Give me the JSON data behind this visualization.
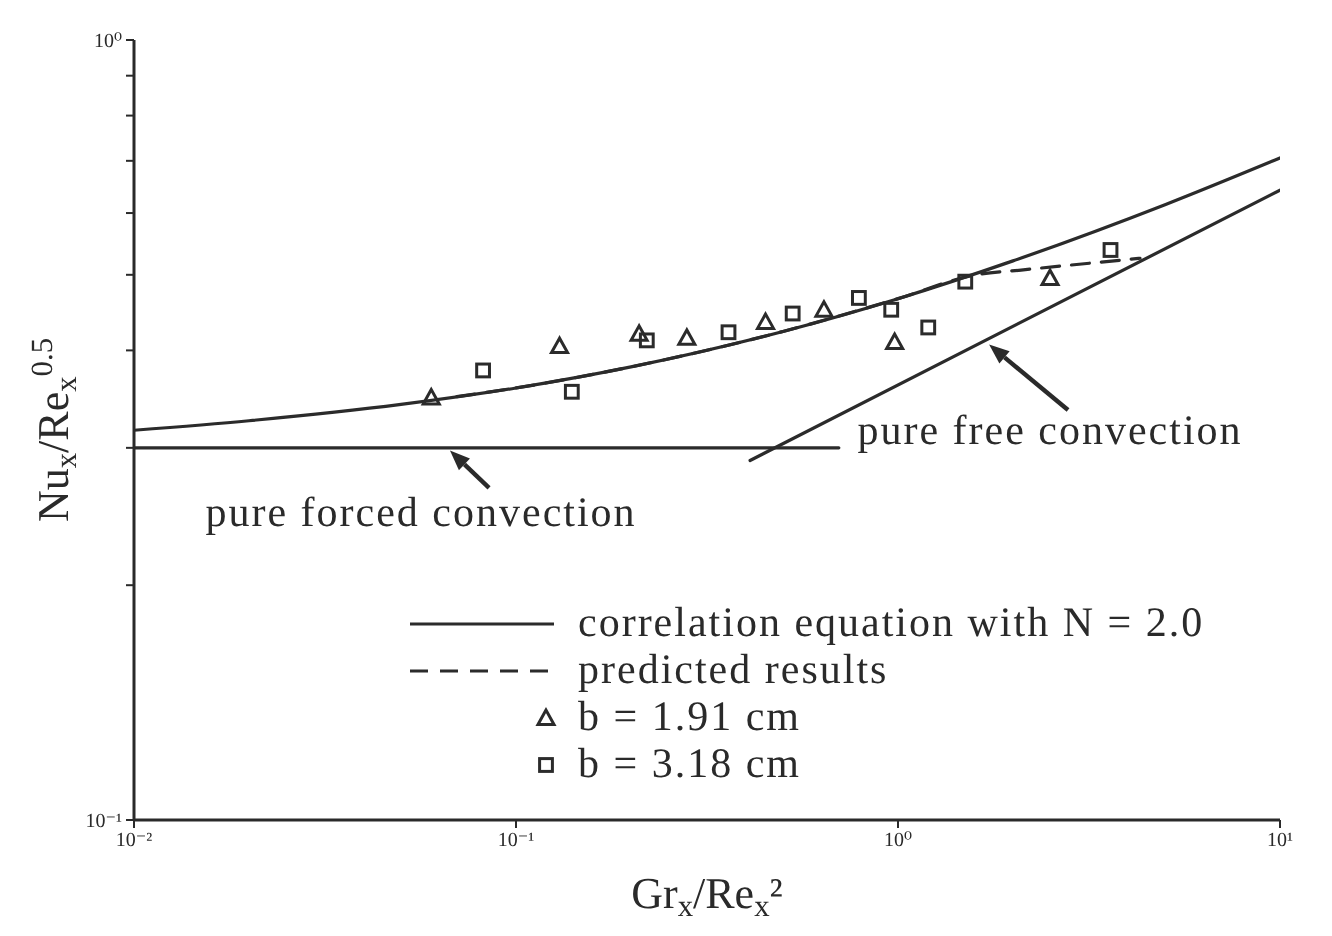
{
  "chart_data": {
    "type": "line",
    "xlabel": "Gr$_{x}$/Re$_{x}$²",
    "ylabel": "Nu$_{x}$/Re$_{x}$$^{0.5}$",
    "log": "xy",
    "xlim": [
      0.01,
      10
    ],
    "ylim": [
      0.1,
      1
    ],
    "xticks": [
      {
        "value": 0.01,
        "label": "10⁻²"
      },
      {
        "value": 0.1,
        "label": "10⁻¹"
      },
      {
        "value": 1,
        "label": "10⁰"
      },
      {
        "value": 10,
        "label": "10¹"
      }
    ],
    "yticks": [
      {
        "value": 0.1,
        "label": "10⁻¹"
      },
      {
        "value": 0.2,
        "label": null
      },
      {
        "value": 0.3,
        "label": null
      },
      {
        "value": 0.4,
        "label": null
      },
      {
        "value": 0.5,
        "label": null
      },
      {
        "value": 0.6,
        "label": null
      },
      {
        "value": 0.7,
        "label": null
      },
      {
        "value": 0.8,
        "label": null
      },
      {
        "value": 0.9,
        "label": null
      },
      {
        "value": 1,
        "label": "10⁰"
      }
    ],
    "legend": "bottom right",
    "series": [
      {
        "name": "correlation equation with N = 2.0",
        "color": "#2b2b2b",
        "x": [
          0.01,
          0.02,
          0.05,
          0.1,
          0.2,
          0.5,
          1,
          2,
          5,
          10
        ],
        "values": [
          0.316,
          0.325,
          0.341,
          0.358,
          0.381,
          0.423,
          0.466,
          0.521,
          0.615,
          0.706
        ]
      },
      {
        "name": "predicted results",
        "line_style": "dashed",
        "color": "#2b2b2b",
        "x": [
          0.07,
          0.1,
          0.2,
          0.5,
          1,
          1.6,
          2.1,
          4.3
        ],
        "values": [
          0.349,
          0.358,
          0.381,
          0.423,
          0.466,
          0.5,
          0.507,
          0.525
        ]
      },
      {
        "color": "#2b2b2b",
        "x": [
          0.01,
          0.7
        ],
        "values": [
          0.3,
          0.3
        ]
      },
      {
        "color": "#2b2b2b",
        "x": [
          0.41,
          10
        ],
        "values": [
          0.289,
          0.642
        ]
      },
      {
        "name": "b = 1.91 cm",
        "type": "scatter",
        "marker": "triangle",
        "color": "#2b2b2b",
        "x": [
          0.06,
          0.13,
          0.21,
          0.28,
          0.45,
          0.64,
          0.98,
          2.5
        ],
        "values": [
          0.348,
          0.405,
          0.42,
          0.415,
          0.435,
          0.451,
          0.41,
          0.495
        ]
      },
      {
        "name": "b = 3.18 cm",
        "type": "scatter",
        "marker": "square",
        "color": "#2b2b2b",
        "x": [
          0.082,
          0.14,
          0.22,
          0.36,
          0.53,
          0.79,
          0.96,
          1.2,
          1.5,
          3.6
        ],
        "values": [
          0.377,
          0.354,
          0.412,
          0.422,
          0.446,
          0.467,
          0.451,
          0.428,
          0.49,
          0.538
        ]
      }
    ],
    "annotations": [
      {
        "text": "pure forced convection",
        "x": 0.066,
        "y": 0.3
      },
      {
        "text": "pure free convection",
        "x": 1.7,
        "y": 0.41
      }
    ]
  }
}
